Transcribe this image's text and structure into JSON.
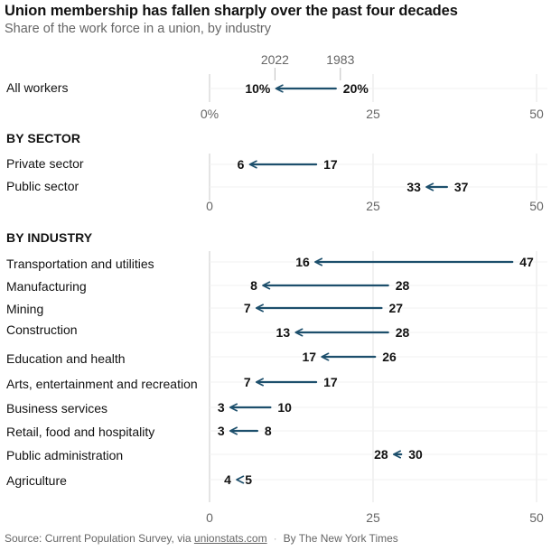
{
  "title": "Union membership has fallen sharply over the past four decades",
  "subtitle": "Share of the work force in a union, by industry",
  "colors": {
    "arrow": "#1d4f6c",
    "grid": "#e4e4e4",
    "axis": "#c8c8c8",
    "text": "#121212",
    "muted": "#666666"
  },
  "chart_data": [
    {
      "type": "arrow-dot",
      "panel": "all",
      "section": "",
      "year_labels": {
        "start": "1983",
        "end": "2022"
      },
      "xlim": [
        0,
        50
      ],
      "ticks": [
        0,
        25,
        50
      ],
      "tick_labels": [
        "0%",
        "25",
        "50"
      ],
      "grid": true,
      "rows": [
        {
          "label": "All workers",
          "start": 20,
          "end": 10,
          "start_label": "20%",
          "end_label": "10%"
        }
      ]
    },
    {
      "type": "arrow-dot",
      "panel": "sector",
      "section": "BY SECTOR",
      "xlim": [
        0,
        50
      ],
      "ticks": [
        0,
        25,
        50
      ],
      "tick_labels": [
        "0",
        "25",
        "50"
      ],
      "grid": true,
      "rows": [
        {
          "label": "Private sector",
          "start": 17,
          "end": 6,
          "start_label": "17",
          "end_label": "6"
        },
        {
          "label": "Public sector",
          "start": 37,
          "end": 33,
          "start_label": "37",
          "end_label": "33"
        }
      ]
    },
    {
      "type": "arrow-dot",
      "panel": "industry",
      "section": "BY INDUSTRY",
      "xlim": [
        0,
        50
      ],
      "ticks": [
        0,
        25,
        50
      ],
      "tick_labels": [
        "0",
        "25",
        "50"
      ],
      "grid": true,
      "rows": [
        {
          "label": "Transportation and utilities",
          "start": 47,
          "end": 16,
          "start_label": "47",
          "end_label": "16"
        },
        {
          "label": "Manufacturing",
          "start": 28,
          "end": 8,
          "start_label": "28",
          "end_label": "8"
        },
        {
          "label": "Mining",
          "start": 27,
          "end": 7,
          "start_label": "27",
          "end_label": "7"
        },
        {
          "label": "Construction",
          "start": 28,
          "end": 13,
          "start_label": "28",
          "end_label": "13"
        },
        {
          "label": "Education and health",
          "start": 26,
          "end": 17,
          "start_label": "26",
          "end_label": "17"
        },
        {
          "label": "Arts, entertainment and recreation",
          "start": 17,
          "end": 7,
          "start_label": "17",
          "end_label": "7"
        },
        {
          "label": "Business services",
          "start": 10,
          "end": 3,
          "start_label": "10",
          "end_label": "3"
        },
        {
          "label": "Retail, food and hospitality",
          "start": 8,
          "end": 3,
          "start_label": "8",
          "end_label": "3"
        },
        {
          "label": "Public administration",
          "start": 30,
          "end": 28,
          "start_label": "30",
          "end_label": "28"
        },
        {
          "label": "Agriculture",
          "start": 5,
          "end": 4,
          "start_label": "5",
          "end_label": "4"
        }
      ]
    }
  ],
  "source": {
    "prefix": "Source: Current Population Survey, via ",
    "link": "unionstats.com",
    "separator": "·",
    "credit": "By The New York Times"
  }
}
